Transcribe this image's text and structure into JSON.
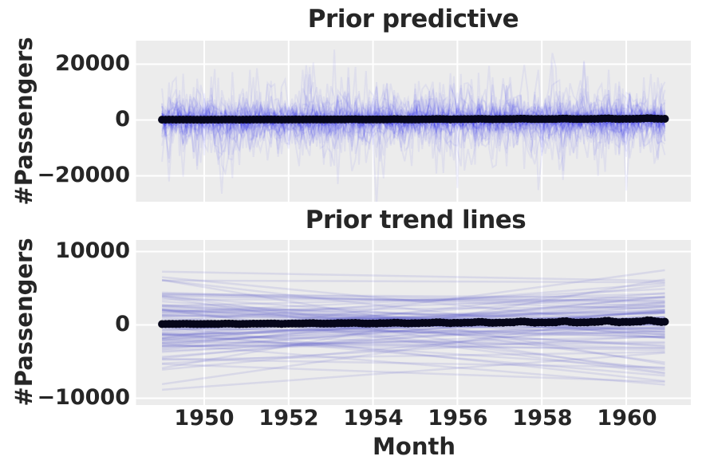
{
  "figure": {
    "background": "#FFFFFF",
    "axes_background": "#ECECEC",
    "grid_color": "#FFFFFF",
    "text_color": "#262626"
  },
  "observed_series": {
    "name": "Monthly airline passengers Jan 1949 - Dec 1960 (black dots, nearly flat at 0 on these axis scales)",
    "x_start_year": 1949,
    "frequency": "monthly",
    "marker_color": "#06061A",
    "marker_radius_px": 5,
    "values": [
      112,
      118,
      132,
      129,
      121,
      135,
      148,
      148,
      136,
      119,
      104,
      118,
      115,
      126,
      141,
      135,
      125,
      149,
      170,
      170,
      158,
      133,
      114,
      140,
      145,
      150,
      178,
      163,
      172,
      178,
      199,
      199,
      184,
      162,
      146,
      166,
      171,
      180,
      193,
      181,
      183,
      218,
      230,
      242,
      209,
      191,
      172,
      194,
      196,
      196,
      236,
      235,
      229,
      243,
      264,
      272,
      237,
      211,
      180,
      201,
      204,
      188,
      235,
      227,
      234,
      264,
      302,
      293,
      259,
      229,
      203,
      229,
      242,
      233,
      267,
      269,
      270,
      315,
      364,
      347,
      312,
      274,
      237,
      278,
      284,
      277,
      317,
      313,
      318,
      374,
      413,
      405,
      355,
      306,
      271,
      306,
      315,
      301,
      356,
      348,
      355,
      422,
      465,
      467,
      404,
      347,
      305,
      336,
      340,
      318,
      362,
      348,
      363,
      435,
      491,
      505,
      404,
      359,
      310,
      337,
      360,
      342,
      406,
      396,
      420,
      472,
      548,
      559,
      463,
      407,
      362,
      405,
      417,
      391,
      419,
      461,
      472,
      535,
      622,
      606,
      508,
      461,
      390,
      432
    ]
  },
  "chart_data": [
    {
      "type": "line",
      "title": "Prior predictive",
      "ylabel": "#Passengers",
      "xlabel": "",
      "xlim": [
        1948.4,
        1961.5
      ],
      "ylim": [
        -29300,
        28400
      ],
      "xticks": [
        1950,
        1952,
        1954,
        1956,
        1958,
        1960
      ],
      "yticks": [
        20000,
        0,
        -20000
      ],
      "ytick_labels": [
        "20000",
        "0",
        "−20000"
      ],
      "grid": true,
      "legend": false,
      "prior_predictive_samples": {
        "description": "~80 jagged monthly noise traces centered on 0; dense core within ±5000, extremes reach about ±27000",
        "n_lines": 80,
        "points_per_line": 144,
        "x_start": 1949.0,
        "x_end": 1960.917,
        "noise_sd_min": 300,
        "noise_sd_max": 9300,
        "color": "#0000EE",
        "alpha": 0.055,
        "seed": 20
      }
    },
    {
      "type": "line",
      "title": "Prior trend lines",
      "ylabel": "#Passengers",
      "xlabel": "Month",
      "xlim": [
        1948.4,
        1961.5
      ],
      "ylim": [
        -10950,
        11550
      ],
      "xticks": [
        1950,
        1952,
        1954,
        1956,
        1958,
        1960
      ],
      "xtick_labels": [
        "1950",
        "1952",
        "1954",
        "1956",
        "1958",
        "1960"
      ],
      "yticks": [
        10000,
        0,
        -10000
      ],
      "ytick_labels": [
        "10000",
        "0",
        "−10000"
      ],
      "grid": true,
      "legend": false,
      "trend_line_samples": {
        "description": "~90 straight lines fanning about 0; bulk within ±5000, extremes reach about ±10500 at the plot edges",
        "n_lines": 90,
        "x_start": 1949.0,
        "x_end": 1960.917,
        "intercept_sd": 2400,
        "slope_sd_per_year": 430,
        "pivot_year": 1955,
        "color": "#5858CC",
        "alpha": 0.13,
        "seed": 77
      }
    }
  ]
}
